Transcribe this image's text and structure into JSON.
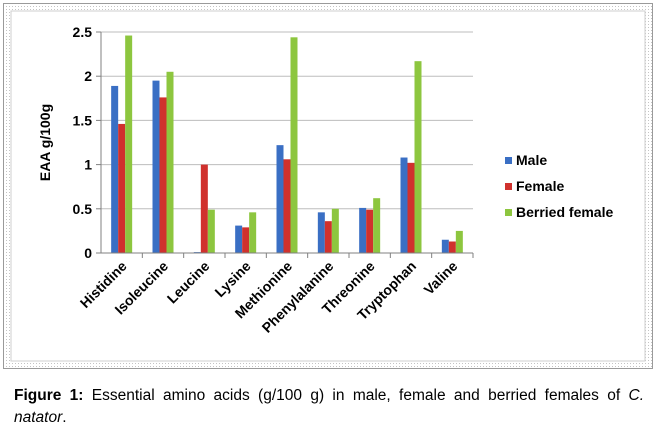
{
  "chart_data": {
    "type": "bar",
    "ylabel": "EAA g/100g",
    "ylim": [
      0,
      2.5
    ],
    "yticks": [
      "0",
      "0.5",
      "1",
      "1.5",
      "2",
      "2.5"
    ],
    "categories": [
      "Histidine",
      "Isoleucine",
      "Leucine",
      "Lysine",
      "Methionine",
      "Phenylalanine",
      "Threonine",
      "Tryptophan",
      "Valine"
    ],
    "series": [
      {
        "name": "Male",
        "color": "#3a6fc4",
        "values": [
          1.89,
          1.95,
          0.01,
          0.31,
          1.22,
          0.46,
          0.51,
          1.08,
          0.15
        ]
      },
      {
        "name": "Female",
        "color": "#d0312d",
        "values": [
          1.46,
          1.76,
          1.0,
          0.29,
          1.06,
          0.36,
          0.49,
          1.02,
          0.13
        ]
      },
      {
        "name": "Berried female",
        "color": "#8dc63f",
        "values": [
          2.46,
          2.05,
          0.49,
          0.46,
          2.44,
          0.5,
          0.62,
          2.17,
          0.25
        ]
      }
    ],
    "legend_position": "right",
    "grid": true
  },
  "caption": {
    "label": "Figure 1:",
    "text_before": " Essential amino acids (g/100 g) in male, female and berried females of ",
    "species": "C. natator",
    "text_after": "."
  }
}
